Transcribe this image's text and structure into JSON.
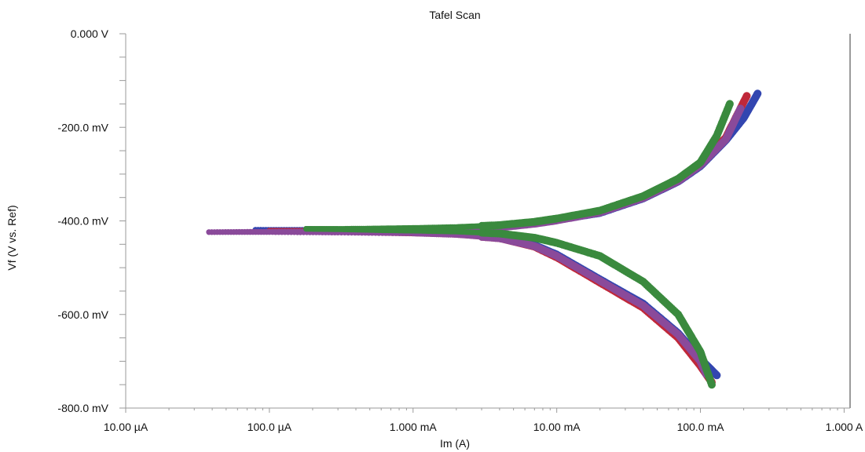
{
  "chart_data": {
    "type": "scatter",
    "title": "Tafel Scan",
    "xlabel": "Im (A)",
    "ylabel": "Vf (V vs. Ref)",
    "x_scale": "log",
    "xlim": [
      1e-05,
      1.1
    ],
    "ylim": [
      -0.8,
      0.0
    ],
    "x_ticks": [
      {
        "value": 1e-05,
        "label": "10.00 µA"
      },
      {
        "value": 0.0001,
        "label": "100.0 µA"
      },
      {
        "value": 0.001,
        "label": "1.000 mA"
      },
      {
        "value": 0.01,
        "label": "10.00 mA"
      },
      {
        "value": 0.1,
        "label": "100.0 mA"
      },
      {
        "value": 1.0,
        "label": "1.000 A"
      }
    ],
    "y_ticks": [
      {
        "value": 0.0,
        "label": "0.000 V"
      },
      {
        "value": -0.2,
        "label": "-200.0 mV"
      },
      {
        "value": -0.4,
        "label": "-400.0 mV"
      },
      {
        "value": -0.6,
        "label": "-600.0 mV"
      },
      {
        "value": -0.8,
        "label": "-800.0 mV"
      }
    ],
    "grid": false,
    "legend": "none",
    "series": [
      {
        "color": "#3346b0",
        "anodic": [
          [
            8e-05,
            -0.419
          ],
          [
            0.0002,
            -0.419
          ],
          [
            0.0005,
            -0.418
          ],
          [
            0.001,
            -0.417
          ],
          [
            0.002,
            -0.416
          ],
          [
            0.004,
            -0.412
          ],
          [
            0.007,
            -0.405
          ],
          [
            0.01,
            -0.398
          ],
          [
            0.02,
            -0.383
          ],
          [
            0.04,
            -0.352
          ],
          [
            0.07,
            -0.316
          ],
          [
            0.1,
            -0.283
          ],
          [
            0.15,
            -0.228
          ],
          [
            0.2,
            -0.18
          ],
          [
            0.25,
            -0.128
          ]
        ],
        "cathodic": [
          [
            8e-05,
            -0.419
          ],
          [
            0.0002,
            -0.421
          ],
          [
            0.0005,
            -0.423
          ],
          [
            0.001,
            -0.425
          ],
          [
            0.002,
            -0.428
          ],
          [
            0.004,
            -0.435
          ],
          [
            0.007,
            -0.452
          ],
          [
            0.01,
            -0.472
          ],
          [
            0.02,
            -0.525
          ],
          [
            0.04,
            -0.577
          ],
          [
            0.07,
            -0.64
          ],
          [
            0.1,
            -0.695
          ],
          [
            0.13,
            -0.73
          ]
        ]
      },
      {
        "color": "#c0283a",
        "anodic": [
          [
            0.0001,
            -0.421
          ],
          [
            0.0002,
            -0.421
          ],
          [
            0.0005,
            -0.42
          ],
          [
            0.001,
            -0.419
          ],
          [
            0.002,
            -0.417
          ],
          [
            0.004,
            -0.413
          ],
          [
            0.007,
            -0.405
          ],
          [
            0.01,
            -0.397
          ],
          [
            0.02,
            -0.38
          ],
          [
            0.04,
            -0.349
          ],
          [
            0.07,
            -0.312
          ],
          [
            0.1,
            -0.278
          ],
          [
            0.15,
            -0.222
          ],
          [
            0.21,
            -0.133
          ]
        ],
        "cathodic": [
          [
            0.0001,
            -0.421
          ],
          [
            0.0002,
            -0.423
          ],
          [
            0.0005,
            -0.425
          ],
          [
            0.001,
            -0.427
          ],
          [
            0.002,
            -0.43
          ],
          [
            0.004,
            -0.437
          ],
          [
            0.007,
            -0.455
          ],
          [
            0.01,
            -0.478
          ],
          [
            0.02,
            -0.532
          ],
          [
            0.04,
            -0.586
          ],
          [
            0.07,
            -0.65
          ],
          [
            0.1,
            -0.71
          ],
          [
            0.12,
            -0.745
          ]
        ]
      },
      {
        "color": "#8a4a9a",
        "anodic": [
          [
            3.8e-05,
            -0.424
          ],
          [
            0.0001,
            -0.423
          ],
          [
            0.0003,
            -0.422
          ],
          [
            0.001,
            -0.42
          ],
          [
            0.002,
            -0.418
          ],
          [
            0.004,
            -0.414
          ],
          [
            0.007,
            -0.406
          ],
          [
            0.01,
            -0.399
          ],
          [
            0.02,
            -0.382
          ],
          [
            0.04,
            -0.351
          ],
          [
            0.07,
            -0.315
          ],
          [
            0.1,
            -0.281
          ],
          [
            0.15,
            -0.226
          ],
          [
            0.19,
            -0.16
          ]
        ],
        "cathodic": [
          [
            3.8e-05,
            -0.424
          ],
          [
            0.0001,
            -0.424
          ],
          [
            0.0003,
            -0.425
          ],
          [
            0.001,
            -0.427
          ],
          [
            0.002,
            -0.43
          ],
          [
            0.004,
            -0.437
          ],
          [
            0.007,
            -0.454
          ],
          [
            0.01,
            -0.475
          ],
          [
            0.02,
            -0.528
          ],
          [
            0.04,
            -0.581
          ],
          [
            0.07,
            -0.643
          ],
          [
            0.1,
            -0.7
          ],
          [
            0.11,
            -0.728
          ]
        ]
      },
      {
        "color": "#3a8a3e",
        "anodic": [
          [
            0.00018,
            -0.417
          ],
          [
            0.0003,
            -0.417
          ],
          [
            0.0006,
            -0.416
          ],
          [
            0.001,
            -0.415
          ],
          [
            0.002,
            -0.413
          ],
          [
            0.004,
            -0.409
          ],
          [
            0.007,
            -0.402
          ],
          [
            0.01,
            -0.395
          ],
          [
            0.02,
            -0.378
          ],
          [
            0.04,
            -0.347
          ],
          [
            0.07,
            -0.31
          ],
          [
            0.1,
            -0.275
          ],
          [
            0.13,
            -0.218
          ],
          [
            0.16,
            -0.15
          ]
        ],
        "cathodic": [
          [
            0.00018,
            -0.417
          ],
          [
            0.0003,
            -0.418
          ],
          [
            0.0006,
            -0.42
          ],
          [
            0.001,
            -0.421
          ],
          [
            0.002,
            -0.423
          ],
          [
            0.004,
            -0.427
          ],
          [
            0.007,
            -0.436
          ],
          [
            0.01,
            -0.447
          ],
          [
            0.02,
            -0.475
          ],
          [
            0.04,
            -0.53
          ],
          [
            0.07,
            -0.6
          ],
          [
            0.1,
            -0.68
          ],
          [
            0.12,
            -0.75
          ]
        ]
      }
    ]
  }
}
